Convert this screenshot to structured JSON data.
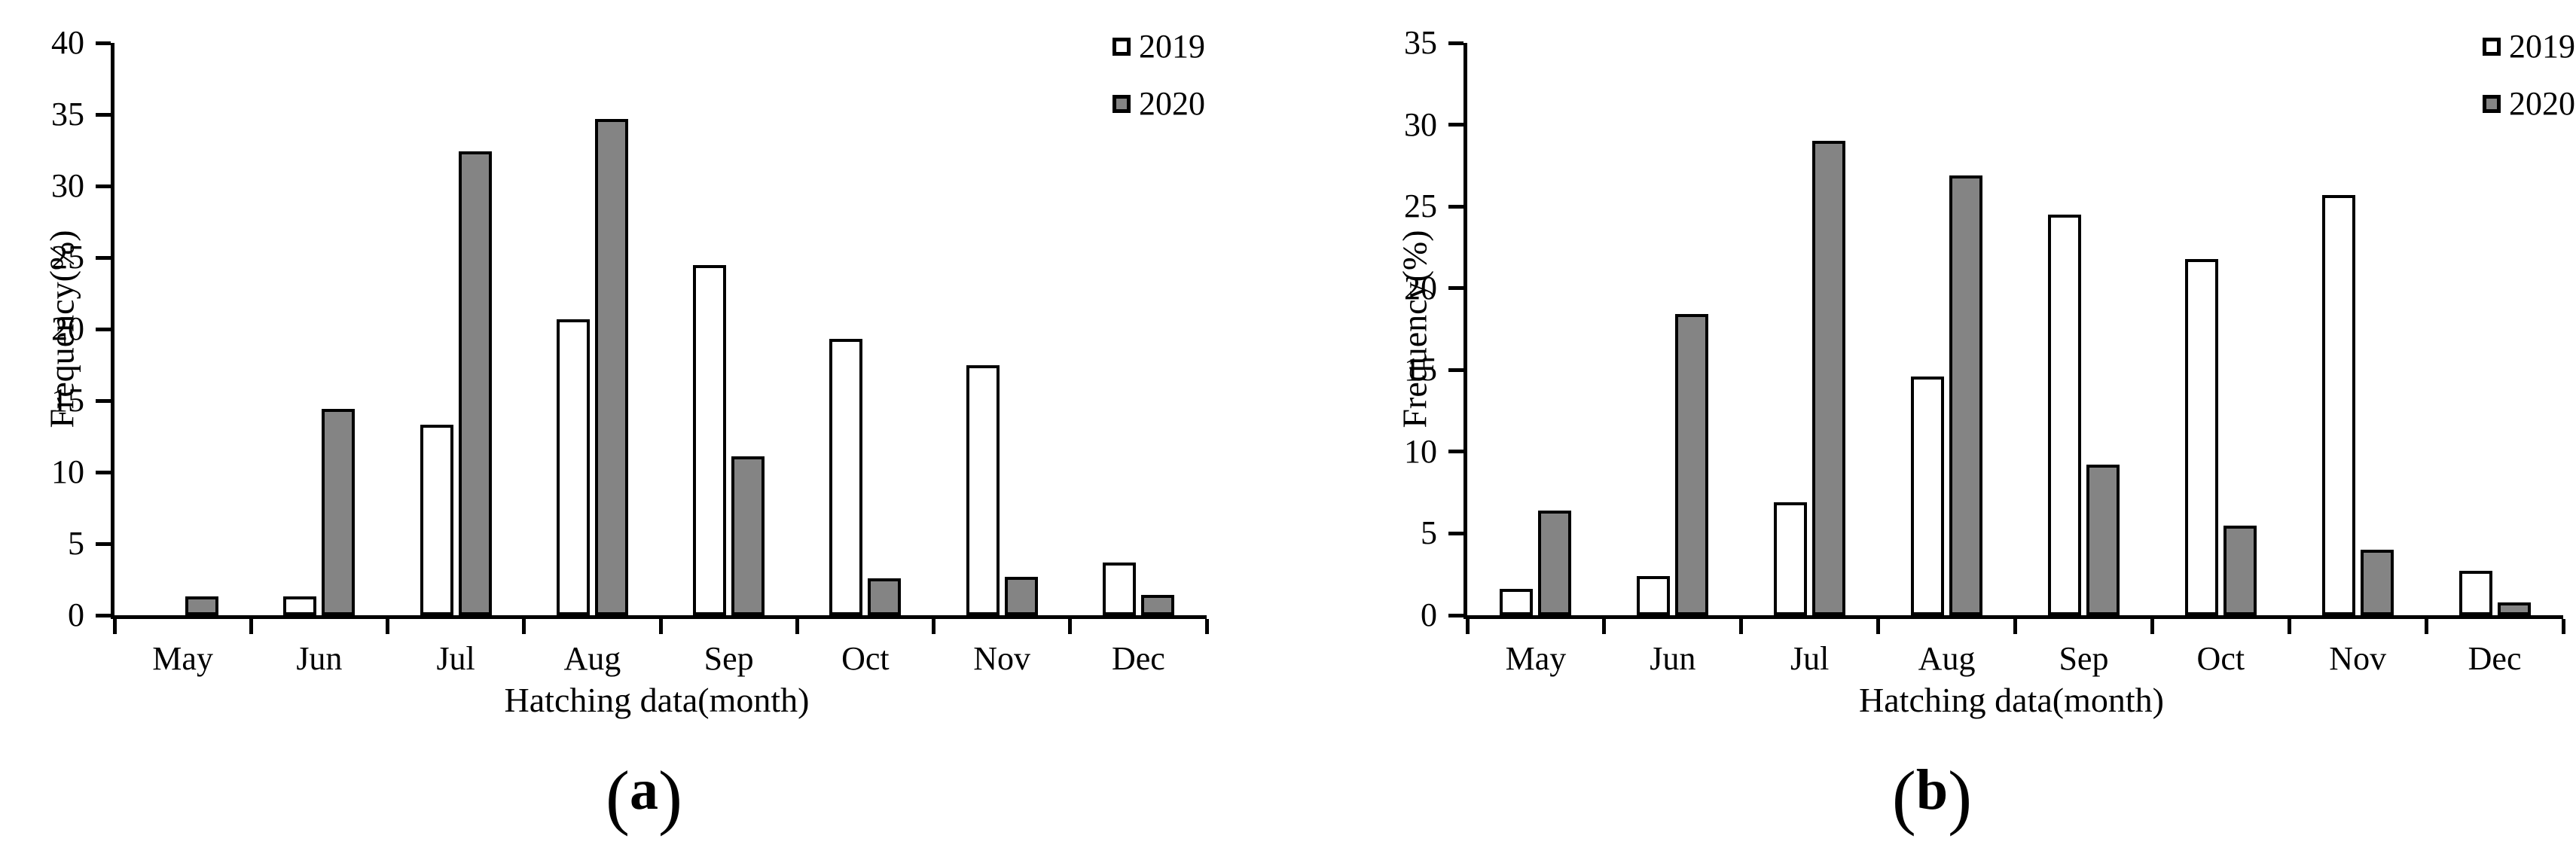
{
  "figure": {
    "background": "#ffffff",
    "axis_color": "#000000",
    "bar_2019_fill": "#ffffff",
    "bar_2020_fill": "#848484"
  },
  "chart_data": [
    {
      "type": "bar",
      "panel": "a",
      "caption_open": "(",
      "caption_letter": "a",
      "caption_close": ")",
      "title": "",
      "ylabel": "Frequency(%)",
      "xlabel": "Hatching data(month)",
      "categories": [
        "May",
        "Jun",
        "Jul",
        "Aug",
        "Sep",
        "Oct",
        "Nov",
        "Dec"
      ],
      "series": [
        {
          "name": "2019",
          "fill": "#ffffff",
          "values": [
            0,
            1.3,
            13.3,
            20.7,
            24.5,
            19.3,
            17.5,
            3.7
          ]
        },
        {
          "name": "2020",
          "fill": "#848484",
          "values": [
            1.3,
            14.4,
            32.4,
            34.7,
            11.1,
            2.6,
            2.7,
            1.4
          ]
        }
      ],
      "ylim": [
        0,
        40
      ],
      "ytick_step": 5,
      "yticks": [
        0,
        5,
        10,
        15,
        20,
        25,
        30,
        35,
        40
      ],
      "grid": false,
      "legend_position": "top-right"
    },
    {
      "type": "bar",
      "panel": "b",
      "caption_open": "(",
      "caption_letter": "b",
      "caption_close": ")",
      "title": "",
      "ylabel": "Frequency(%)",
      "xlabel": "Hatching data(month)",
      "categories": [
        "May",
        "Jun",
        "Jul",
        "Aug",
        "Sep",
        "Oct",
        "Nov",
        "Dec"
      ],
      "series": [
        {
          "name": "2019",
          "fill": "#ffffff",
          "values": [
            1.6,
            2.4,
            6.9,
            14.6,
            24.5,
            21.8,
            25.7,
            2.7
          ]
        },
        {
          "name": "2020",
          "fill": "#848484",
          "values": [
            6.4,
            18.4,
            29.0,
            26.9,
            9.2,
            5.5,
            4.0,
            0.8
          ]
        }
      ],
      "ylim": [
        0,
        35
      ],
      "ytick_step": 5,
      "yticks": [
        0,
        5,
        10,
        15,
        20,
        25,
        30,
        35
      ],
      "grid": false,
      "legend_position": "top-right"
    }
  ]
}
